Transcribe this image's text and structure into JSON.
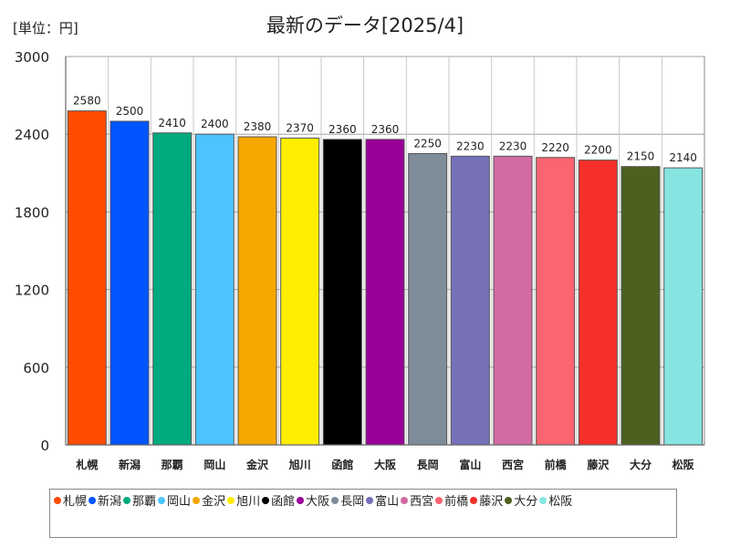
{
  "unit_label": "[単位：円]",
  "chart_data": {
    "type": "bar",
    "title": "最新のデータ[2025/4]",
    "ylim": [
      0,
      3000
    ],
    "yticks": [
      0,
      600,
      1200,
      1800,
      2400,
      3000
    ],
    "grid": true,
    "legend_position": "bottom",
    "categories": [
      "札幌",
      "新潟",
      "那覇",
      "岡山",
      "金沢",
      "旭川",
      "函館",
      "大阪",
      "長岡",
      "富山",
      "西宮",
      "前橋",
      "藤沢",
      "大分",
      "松阪"
    ],
    "values": [
      2580,
      2500,
      2410,
      2400,
      2380,
      2370,
      2360,
      2360,
      2250,
      2230,
      2230,
      2220,
      2200,
      2150,
      2140
    ],
    "colors": [
      "#ff4c00",
      "#0055ff",
      "#00aa7f",
      "#4dc3ff",
      "#f5a700",
      "#ffee00",
      "#000000",
      "#990099",
      "#7f8c99",
      "#7670b8",
      "#d26aa3",
      "#fb6470",
      "#f5302b",
      "#4d6020",
      "#86e5e1"
    ]
  }
}
